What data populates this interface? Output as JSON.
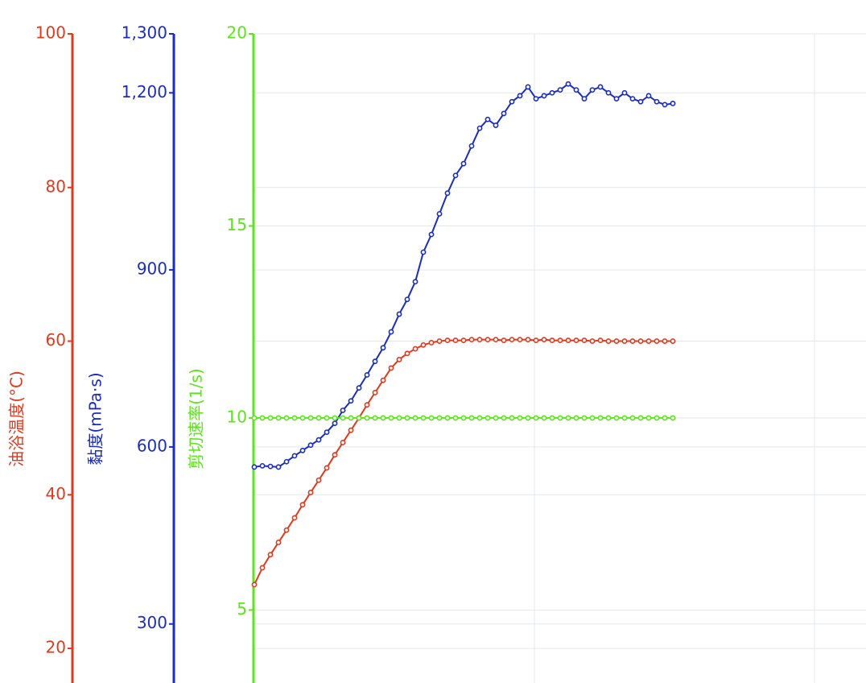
{
  "chart_data": {
    "type": "line",
    "ylabel": "油浴温度(°C)",
    "ylim": [
      15.5,
      100
    ],
    "yticks": [
      20,
      40,
      60,
      80,
      100
    ],
    "ycolor": "#e03a1e",
    "y2label": "黏度(mPa·s)",
    "y2lim": [
      200,
      1300
    ],
    "y2ticks": [
      300,
      600,
      900,
      {
        "value": 1200,
        "label": "1,200"
      },
      {
        "value": 1300,
        "label": "1,300"
      }
    ],
    "y2color": "#1a2dbf",
    "y3label": "剪切速率(1/s)",
    "y3lim": [
      3.1,
      20
    ],
    "y3ticks": [
      5,
      10,
      15,
      20
    ],
    "y3color": "#5ae619",
    "grid": true,
    "series": [
      {
        "name": "油浴温度",
        "color": "#e03a1e",
        "axis": "y",
        "values": [
          28.3,
          30.5,
          32.2,
          33.8,
          35.4,
          37.0,
          38.7,
          40.3,
          41.9,
          43.5,
          45.2,
          46.8,
          48.4,
          50.0,
          51.7,
          53.3,
          54.9,
          56.5,
          57.6,
          58.4,
          59.0,
          59.5,
          59.8,
          60.0,
          60.1,
          60.1,
          60.1,
          60.2,
          60.2,
          60.2,
          60.2,
          60.1,
          60.2,
          60.2,
          60.2,
          60.1,
          60.2,
          60.1,
          60.1,
          60.1,
          60.1,
          60.1,
          60.0,
          60.1,
          60.0,
          60.0,
          60.0,
          60.0,
          60.0,
          60.0,
          60.0,
          60.0,
          60.0
        ]
      },
      {
        "name": "黏度",
        "color": "#1a2dbf",
        "axis": "y2",
        "values": [
          566,
          568,
          567,
          566,
          575,
          585,
          594,
          603,
          612,
          625,
          640,
          662,
          678,
          700,
          722,
          745,
          768,
          795,
          825,
          850,
          880,
          930,
          960,
          995,
          1030,
          1060,
          1080,
          1110,
          1140,
          1155,
          1145,
          1165,
          1185,
          1195,
          1210,
          1190,
          1195,
          1200,
          1205,
          1215,
          1205,
          1190,
          1205,
          1210,
          1200,
          1190,
          1200,
          1190,
          1185,
          1195,
          1185,
          1180,
          1182
        ]
      },
      {
        "name": "剪切速率",
        "color": "#5ae619",
        "axis": "y3",
        "values": [
          10,
          10,
          10,
          10,
          10,
          10,
          10,
          10,
          10,
          10,
          10,
          10,
          10,
          10,
          10,
          10,
          10,
          10,
          10,
          10,
          10,
          10,
          10,
          10,
          10,
          10,
          10,
          10,
          10,
          10,
          10,
          10,
          10,
          10,
          10,
          10,
          10,
          10,
          10,
          10,
          10,
          10,
          10,
          10,
          10,
          10,
          10,
          10,
          10,
          10,
          10,
          10,
          10
        ]
      }
    ]
  }
}
